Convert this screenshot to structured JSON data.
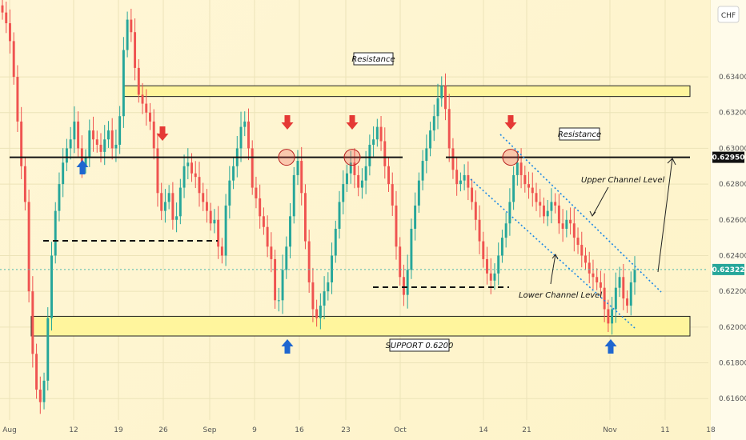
{
  "chart_data": {
    "type": "candlestick",
    "currency": "CHF",
    "y_ticks": [
      "0.63400",
      "0.63200",
      "0.63000",
      "0.62800",
      "0.62600",
      "0.62400",
      "0.62200",
      "0.62000",
      "0.61800",
      "0.61600"
    ],
    "x_ticks": [
      "Aug",
      "12",
      "19",
      "26",
      "Sep",
      "9",
      "16",
      "23",
      "Oct",
      "14",
      "21",
      "Nov",
      "11",
      "18"
    ],
    "ylim": [
      0.6148,
      0.6383
    ],
    "current_price": "0.62322",
    "resistance_price": "0.62950",
    "resistance_level": 0.6295,
    "resistance_zone": [
      0.6329,
      0.6335
    ],
    "support_zone": [
      0.6195,
      0.6206
    ],
    "annotations": {
      "resistance_top": "Resistance",
      "resistance_right": "Resistance",
      "upper_channel": "Upper Channel Level",
      "lower_channel": "Lower Channel Level",
      "support": "SUPPORT 0.6200"
    },
    "colors": {
      "up": "#26a69a",
      "down": "#ef5350",
      "zone_fill": "#fff59d",
      "resistance_line": "#111111",
      "channel": "#1e88e5",
      "arrow_down": "#e53935",
      "arrow_up": "#1e66d0"
    },
    "series": [
      {
        "values": [
          0.6376,
          0.637,
          0.636,
          0.634,
          0.6315,
          0.629,
          0.627,
          0.622,
          0.6185,
          0.6165,
          0.6158,
          0.617,
          0.6205,
          0.624,
          0.6265,
          0.628,
          0.6292,
          0.63,
          0.6305,
          0.6315,
          0.63,
          0.629,
          0.6295,
          0.631,
          0.6305,
          0.6302,
          0.6298,
          0.6305,
          0.631,
          0.63,
          0.6302,
          0.6318,
          0.6355,
          0.6372,
          0.6365,
          0.6345,
          0.633,
          0.6325,
          0.632,
          0.6315,
          0.63,
          0.6275,
          0.6265,
          0.627,
          0.6275,
          0.626,
          0.6262,
          0.6278,
          0.629,
          0.6292,
          0.6286,
          0.6284,
          0.6275,
          0.627,
          0.6265,
          0.6258,
          0.626,
          0.6245,
          0.624,
          0.6268,
          0.6282,
          0.629,
          0.63,
          0.6312,
          0.6315,
          0.63,
          0.6278,
          0.6272,
          0.6262,
          0.6256,
          0.6245,
          0.6238,
          0.6215,
          0.6215,
          0.6232,
          0.6245,
          0.6262,
          0.6285,
          0.6293,
          0.6275,
          0.6248,
          0.6225,
          0.621,
          0.6205,
          0.6212,
          0.622,
          0.6225,
          0.624,
          0.6255,
          0.627,
          0.628,
          0.6286,
          0.6292,
          0.6285,
          0.6278,
          0.6282,
          0.629,
          0.6302,
          0.6305,
          0.6312,
          0.6304,
          0.629,
          0.628,
          0.6268,
          0.6245,
          0.6228,
          0.6218,
          0.6232,
          0.6255,
          0.6268,
          0.6282,
          0.6293,
          0.63,
          0.631,
          0.6318,
          0.6328,
          0.6335,
          0.6322,
          0.63,
          0.6288,
          0.628,
          0.6282,
          0.6285,
          0.6278,
          0.627,
          0.626,
          0.6248,
          0.6238,
          0.623,
          0.6226,
          0.623,
          0.624,
          0.625,
          0.6258,
          0.627,
          0.6285,
          0.6292,
          0.6285,
          0.628,
          0.6278,
          0.6275,
          0.627,
          0.6268,
          0.6262,
          0.6265,
          0.627,
          0.6268,
          0.6258,
          0.6255,
          0.626,
          0.6258,
          0.625,
          0.6246,
          0.624,
          0.6236,
          0.623,
          0.6228,
          0.6225,
          0.6222,
          0.621,
          0.6202,
          0.621,
          0.6222,
          0.6228,
          0.6216,
          0.6212,
          0.6225,
          0.6232
        ]
      }
    ]
  }
}
